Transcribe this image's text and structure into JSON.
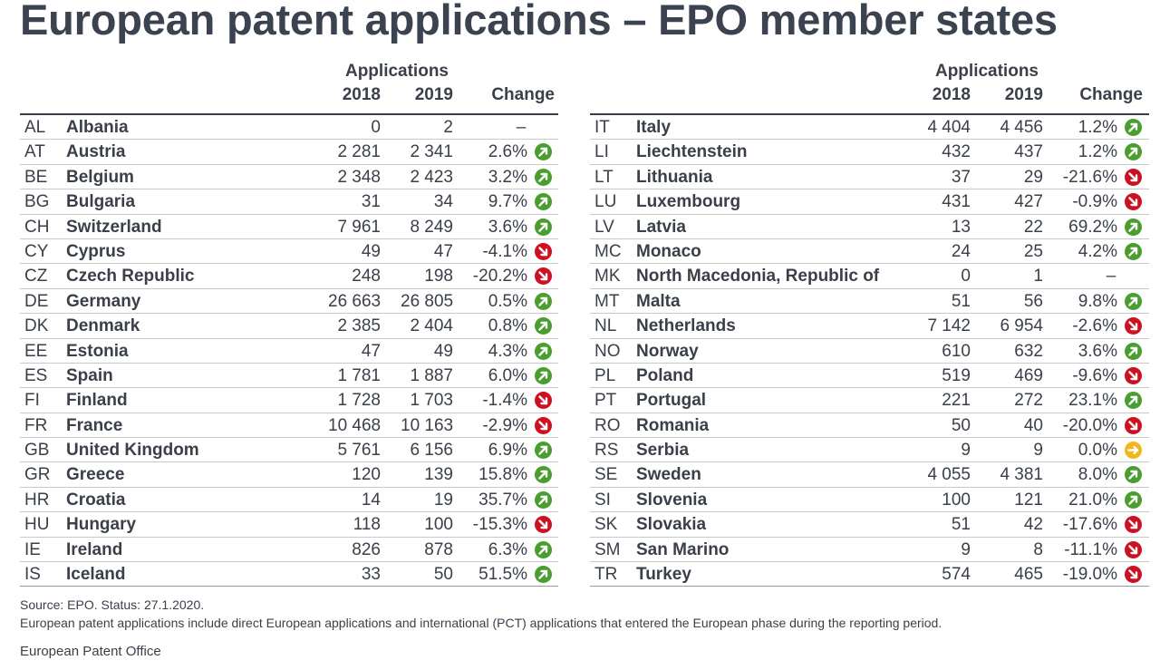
{
  "title": "European patent applications – EPO member states",
  "headers": {
    "group": "Applications",
    "y2018": "2018",
    "y2019": "2019",
    "change": "Change"
  },
  "status_colors": {
    "up": "#4a9e2f",
    "down": "#cc1122",
    "flat": "#f2b51d"
  },
  "left_rows": [
    {
      "code": "AL",
      "country": "Albania",
      "y2018": "0",
      "y2019": "2",
      "change": "–",
      "trend": "none"
    },
    {
      "code": "AT",
      "country": "Austria",
      "y2018": "2 281",
      "y2019": "2 341",
      "change": "2.6%",
      "trend": "up"
    },
    {
      "code": "BE",
      "country": "Belgium",
      "y2018": "2 348",
      "y2019": "2 423",
      "change": "3.2%",
      "trend": "up"
    },
    {
      "code": "BG",
      "country": "Bulgaria",
      "y2018": "31",
      "y2019": "34",
      "change": "9.7%",
      "trend": "up"
    },
    {
      "code": "CH",
      "country": "Switzerland",
      "y2018": "7 961",
      "y2019": "8 249",
      "change": "3.6%",
      "trend": "up"
    },
    {
      "code": "CY",
      "country": "Cyprus",
      "y2018": "49",
      "y2019": "47",
      "change": "-4.1%",
      "trend": "down"
    },
    {
      "code": "CZ",
      "country": "Czech Republic",
      "y2018": "248",
      "y2019": "198",
      "change": "-20.2%",
      "trend": "down"
    },
    {
      "code": "DE",
      "country": "Germany",
      "y2018": "26 663",
      "y2019": "26 805",
      "change": "0.5%",
      "trend": "up"
    },
    {
      "code": "DK",
      "country": "Denmark",
      "y2018": "2 385",
      "y2019": "2 404",
      "change": "0.8%",
      "trend": "up"
    },
    {
      "code": "EE",
      "country": "Estonia",
      "y2018": "47",
      "y2019": "49",
      "change": "4.3%",
      "trend": "up"
    },
    {
      "code": "ES",
      "country": "Spain",
      "y2018": "1 781",
      "y2019": "1 887",
      "change": "6.0%",
      "trend": "up"
    },
    {
      "code": "FI",
      "country": "Finland",
      "y2018": "1 728",
      "y2019": "1 703",
      "change": "-1.4%",
      "trend": "down"
    },
    {
      "code": "FR",
      "country": "France",
      "y2018": "10 468",
      "y2019": "10 163",
      "change": "-2.9%",
      "trend": "down"
    },
    {
      "code": "GB",
      "country": "United Kingdom",
      "y2018": "5 761",
      "y2019": "6 156",
      "change": "6.9%",
      "trend": "up"
    },
    {
      "code": "GR",
      "country": "Greece",
      "y2018": "120",
      "y2019": "139",
      "change": "15.8%",
      "trend": "up"
    },
    {
      "code": "HR",
      "country": "Croatia",
      "y2018": "14",
      "y2019": "19",
      "change": "35.7%",
      "trend": "up"
    },
    {
      "code": "HU",
      "country": "Hungary",
      "y2018": "118",
      "y2019": "100",
      "change": "-15.3%",
      "trend": "down"
    },
    {
      "code": "IE",
      "country": "Ireland",
      "y2018": "826",
      "y2019": "878",
      "change": "6.3%",
      "trend": "up"
    },
    {
      "code": "IS",
      "country": "Iceland",
      "y2018": "33",
      "y2019": "50",
      "change": "51.5%",
      "trend": "up"
    }
  ],
  "right_rows": [
    {
      "code": "IT",
      "country": "Italy",
      "y2018": "4 404",
      "y2019": "4 456",
      "change": "1.2%",
      "trend": "up"
    },
    {
      "code": "LI",
      "country": "Liechtenstein",
      "y2018": "432",
      "y2019": "437",
      "change": "1.2%",
      "trend": "up"
    },
    {
      "code": "LT",
      "country": "Lithuania",
      "y2018": "37",
      "y2019": "29",
      "change": "-21.6%",
      "trend": "down"
    },
    {
      "code": "LU",
      "country": "Luxembourg",
      "y2018": "431",
      "y2019": "427",
      "change": "-0.9%",
      "trend": "down"
    },
    {
      "code": "LV",
      "country": "Latvia",
      "y2018": "13",
      "y2019": "22",
      "change": "69.2%",
      "trend": "up"
    },
    {
      "code": "MC",
      "country": "Monaco",
      "y2018": "24",
      "y2019": "25",
      "change": "4.2%",
      "trend": "up"
    },
    {
      "code": "MK",
      "country": "North Macedonia, Republic of",
      "y2018": "0",
      "y2019": "1",
      "change": "–",
      "trend": "none"
    },
    {
      "code": "MT",
      "country": "Malta",
      "y2018": "51",
      "y2019": "56",
      "change": "9.8%",
      "trend": "up"
    },
    {
      "code": "NL",
      "country": "Netherlands",
      "y2018": "7 142",
      "y2019": "6 954",
      "change": "-2.6%",
      "trend": "down"
    },
    {
      "code": "NO",
      "country": "Norway",
      "y2018": "610",
      "y2019": "632",
      "change": "3.6%",
      "trend": "up"
    },
    {
      "code": "PL",
      "country": "Poland",
      "y2018": "519",
      "y2019": "469",
      "change": "-9.6%",
      "trend": "down"
    },
    {
      "code": "PT",
      "country": "Portugal",
      "y2018": "221",
      "y2019": "272",
      "change": "23.1%",
      "trend": "up"
    },
    {
      "code": "RO",
      "country": "Romania",
      "y2018": "50",
      "y2019": "40",
      "change": "-20.0%",
      "trend": "down"
    },
    {
      "code": "RS",
      "country": "Serbia",
      "y2018": "9",
      "y2019": "9",
      "change": "0.0%",
      "trend": "flat"
    },
    {
      "code": "SE",
      "country": "Sweden",
      "y2018": "4 055",
      "y2019": "4 381",
      "change": "8.0%",
      "trend": "up"
    },
    {
      "code": "SI",
      "country": "Slovenia",
      "y2018": "100",
      "y2019": "121",
      "change": "21.0%",
      "trend": "up"
    },
    {
      "code": "SK",
      "country": "Slovakia",
      "y2018": "51",
      "y2019": "42",
      "change": "-17.6%",
      "trend": "down"
    },
    {
      "code": "SM",
      "country": "San Marino",
      "y2018": "9",
      "y2019": "8",
      "change": "-11.1%",
      "trend": "down"
    },
    {
      "code": "TR",
      "country": "Turkey",
      "y2018": "574",
      "y2019": "465",
      "change": "-19.0%",
      "trend": "down"
    }
  ],
  "footnotes": {
    "source": "Source: EPO. Status: 27.1.2020.",
    "note": "European patent applications include direct European applications and international (PCT) applications that entered the European phase during the reporting period."
  },
  "footer": "European Patent Office"
}
